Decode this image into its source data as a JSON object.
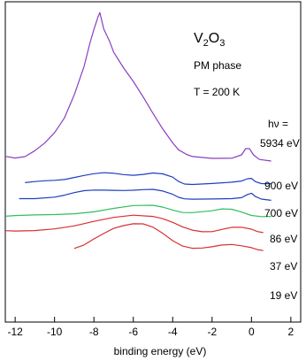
{
  "chart_data": {
    "type": "line",
    "title": "V2O3",
    "annotations": {
      "formula": "V",
      "formula_sub1": "2",
      "formula_o": "O",
      "formula_sub2": "3",
      "phase": "PM phase",
      "temperature": "T = 200 K",
      "photon_symbol": "hν ="
    },
    "xlabel": "binding energy (eV)",
    "ylabel": "",
    "xlim": [
      -12.5,
      2.5
    ],
    "x_reversed": false,
    "x_ticks": [
      -12,
      -10,
      -8,
      -6,
      -4,
      -2,
      0,
      2
    ],
    "x_tick_labels": [
      "-12",
      "-10",
      "-8",
      "-6",
      "-4",
      "-2",
      "0",
      "2"
    ],
    "y_axis_ticks_shown": false,
    "grid": false,
    "legend": "labels at right end of each curve",
    "series": [
      {
        "name": "5934 eV",
        "color": "#8a3fc0",
        "baseline_offset": 0.0,
        "points": [
          [
            -12.5,
            0.02
          ],
          [
            -12,
            0.02
          ],
          [
            -11.5,
            0.03
          ],
          [
            -11,
            0.06
          ],
          [
            -10.5,
            0.1
          ],
          [
            -10,
            0.17
          ],
          [
            -9.5,
            0.28
          ],
          [
            -9,
            0.45
          ],
          [
            -8.5,
            0.65
          ],
          [
            -8.2,
            0.8
          ],
          [
            -8,
            0.88
          ],
          [
            -7.8,
            0.96
          ],
          [
            -7.7,
            1.0
          ],
          [
            -7.5,
            0.9
          ],
          [
            -7.2,
            0.82
          ],
          [
            -7,
            0.74
          ],
          [
            -6.5,
            0.62
          ],
          [
            -6,
            0.52
          ],
          [
            -5.5,
            0.42
          ],
          [
            -5,
            0.32
          ],
          [
            -4.5,
            0.22
          ],
          [
            -4,
            0.12
          ],
          [
            -3.7,
            0.06
          ],
          [
            -3.3,
            0.02
          ],
          [
            -3,
            0.01
          ],
          [
            -2,
            0.01
          ],
          [
            -1,
            0.02
          ],
          [
            -0.5,
            0.04
          ],
          [
            -0.3,
            0.07
          ],
          [
            -0.1,
            0.06
          ],
          [
            0.1,
            0.02
          ],
          [
            0.4,
            0.0
          ],
          [
            1,
            0.0
          ]
        ]
      },
      {
        "name": "900 eV",
        "color": "#1f3fc0",
        "baseline_offset": -0.16,
        "points": [
          [
            -11.5,
            0.0
          ],
          [
            -11,
            0.003
          ],
          [
            -10.5,
            0.008
          ],
          [
            -10,
            0.015
          ],
          [
            -9.5,
            0.025
          ],
          [
            -9,
            0.04
          ],
          [
            -8.5,
            0.05
          ],
          [
            -8,
            0.058
          ],
          [
            -7.5,
            0.063
          ],
          [
            -7,
            0.063
          ],
          [
            -6.5,
            0.058
          ],
          [
            -6,
            0.055
          ],
          [
            -5.5,
            0.058
          ],
          [
            -5,
            0.063
          ],
          [
            -4.5,
            0.055
          ],
          [
            -4,
            0.035
          ],
          [
            -3.7,
            0.01
          ],
          [
            -3.4,
            -0.005
          ],
          [
            -3,
            -0.01
          ],
          [
            -2,
            -0.008
          ],
          [
            -1,
            -0.002
          ],
          [
            -0.5,
            0.008
          ],
          [
            -0.2,
            0.028
          ],
          [
            0,
            0.034
          ],
          [
            0.2,
            0.01
          ],
          [
            0.5,
            -0.008
          ],
          [
            1,
            -0.012
          ]
        ]
      },
      {
        "name": "700 eV",
        "color": "#1f3fc0",
        "baseline_offset": -0.27,
        "points": [
          [
            -11.8,
            0.0
          ],
          [
            -11,
            0.004
          ],
          [
            -10,
            0.015
          ],
          [
            -9.5,
            0.025
          ],
          [
            -9,
            0.038
          ],
          [
            -8.5,
            0.05
          ],
          [
            -8,
            0.058
          ],
          [
            -7.5,
            0.062
          ],
          [
            -7,
            0.062
          ],
          [
            -6.5,
            0.058
          ],
          [
            -6,
            0.055
          ],
          [
            -5.5,
            0.057
          ],
          [
            -5,
            0.062
          ],
          [
            -4.5,
            0.055
          ],
          [
            -4,
            0.035
          ],
          [
            -3.7,
            0.012
          ],
          [
            -3.4,
            -0.003
          ],
          [
            -3,
            -0.008
          ],
          [
            -2,
            -0.005
          ],
          [
            -1,
            0.002
          ],
          [
            -0.5,
            0.012
          ],
          [
            -0.2,
            0.032
          ],
          [
            0,
            0.036
          ],
          [
            0.2,
            0.01
          ],
          [
            0.5,
            -0.006
          ],
          [
            1,
            -0.01
          ]
        ]
      },
      {
        "name": "86 eV",
        "color": "#2fbf5f",
        "baseline_offset": -0.39,
        "points": [
          [
            -12.5,
            0.0
          ],
          [
            -12,
            0.001
          ],
          [
            -11,
            0.004
          ],
          [
            -10,
            0.01
          ],
          [
            -9,
            0.02
          ],
          [
            -8,
            0.035
          ],
          [
            -7,
            0.055
          ],
          [
            -6,
            0.07
          ],
          [
            -5,
            0.07
          ],
          [
            -4.5,
            0.06
          ],
          [
            -4,
            0.045
          ],
          [
            -3.5,
            0.03
          ],
          [
            -3,
            0.027
          ],
          [
            -2,
            0.035
          ],
          [
            -1.5,
            0.045
          ],
          [
            -1,
            0.045
          ],
          [
            -0.5,
            0.03
          ],
          [
            0,
            0.01
          ],
          [
            0.5,
            0.0
          ],
          [
            1,
            -0.003
          ]
        ]
      },
      {
        "name": "37 eV",
        "color": "#d83030",
        "baseline_offset": -0.49,
        "points": [
          [
            -12.5,
            0.0
          ],
          [
            -12,
            0.002
          ],
          [
            -11,
            0.006
          ],
          [
            -10,
            0.014
          ],
          [
            -9,
            0.03
          ],
          [
            -8,
            0.06
          ],
          [
            -7,
            0.09
          ],
          [
            -6,
            0.11
          ],
          [
            -5,
            0.103
          ],
          [
            -4.5,
            0.085
          ],
          [
            -4,
            0.055
          ],
          [
            -3.5,
            0.022
          ],
          [
            -3,
            0.002
          ],
          [
            -2.5,
            -0.004
          ],
          [
            -2,
            -0.001
          ],
          [
            -1.5,
            0.012
          ],
          [
            -1,
            0.022
          ],
          [
            -0.5,
            0.02
          ],
          [
            0,
            0.008
          ],
          [
            0.3,
            -0.004
          ],
          [
            0.6,
            -0.008
          ]
        ]
      },
      {
        "name": "19 eV",
        "color": "#d83030",
        "baseline_offset": -0.61,
        "points": [
          [
            -9,
            0.0
          ],
          [
            -8.5,
            0.02
          ],
          [
            -8,
            0.06
          ],
          [
            -7.5,
            0.1
          ],
          [
            -7,
            0.14
          ],
          [
            -6.5,
            0.16
          ],
          [
            -6,
            0.17
          ],
          [
            -5.5,
            0.165
          ],
          [
            -5,
            0.14
          ],
          [
            -4.5,
            0.1
          ],
          [
            -4,
            0.055
          ],
          [
            -3.5,
            0.02
          ],
          [
            -3,
            0.003
          ],
          [
            -2.5,
            0.0
          ],
          [
            -2,
            0.006
          ],
          [
            -1.5,
            0.02
          ],
          [
            -1,
            0.028
          ],
          [
            -0.5,
            0.022
          ],
          [
            0,
            0.008
          ],
          [
            0.3,
            -0.01
          ],
          [
            0.6,
            -0.02
          ]
        ]
      }
    ]
  }
}
